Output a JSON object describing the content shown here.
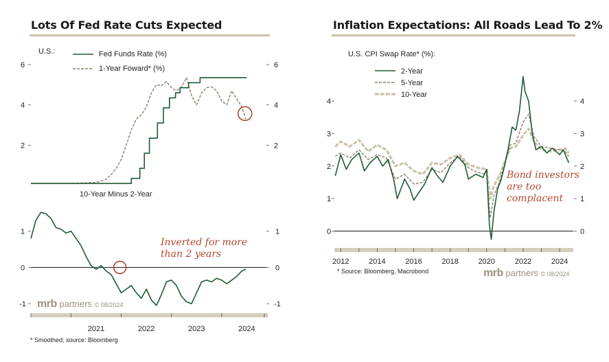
{
  "colors": {
    "green": "#1f5a34",
    "tan": "#8c7f6c",
    "light_tan": "#cbc3ad",
    "annotation": "#b0492f",
    "axis_band": "#d3cfbd",
    "title_rule": "#c9c3ad"
  },
  "left_panel": {
    "title": "Lots Of Fed Rate Cuts Expected",
    "footnote": "* Smoothed; source: Bloomberg",
    "brand": {
      "logo": "mrb",
      "name": "partners",
      "copyright": "© 08/2024"
    }
  },
  "right_panel": {
    "title": "Inflation Expectations: All Roads Lead To 2%",
    "footnote": "* Source: Bloomberg, Macrobond",
    "brand": {
      "logo": "mrb",
      "name": "partners",
      "copyright": "© 08/2024"
    }
  },
  "chart_data": [
    {
      "id": "fed-funds",
      "type": "line",
      "unit_label": "U.S.:",
      "ylim": [
        0,
        6
      ],
      "yticks": [
        "6",
        "4",
        "2"
      ],
      "xlim": [
        2020.2,
        2024.85
      ],
      "series": [
        {
          "name": "Fed Funds Rate (%)",
          "style": "solid",
          "color": "#1f5a34",
          "x": [
            2020.2,
            2022.2,
            2022.2,
            2022.37,
            2022.37,
            2022.46,
            2022.46,
            2022.56,
            2022.56,
            2022.72,
            2022.72,
            2022.84,
            2022.84,
            2022.96,
            2022.96,
            2023.08,
            2023.08,
            2023.17,
            2023.17,
            2023.34,
            2023.34,
            2023.57,
            2023.57,
            2024.5
          ],
          "y": [
            0.1,
            0.1,
            0.35,
            0.35,
            0.85,
            0.85,
            1.6,
            1.6,
            2.35,
            2.35,
            3.1,
            3.1,
            3.85,
            3.85,
            4.35,
            4.35,
            4.6,
            4.6,
            4.85,
            4.85,
            5.1,
            5.1,
            5.35,
            5.35
          ]
        },
        {
          "name": "1-Year Foward* (%)",
          "style": "dashed",
          "color": "#8c7f6c",
          "x": [
            2020.2,
            2021.0,
            2021.5,
            2021.7,
            2021.8,
            2021.9,
            2022.0,
            2022.1,
            2022.2,
            2022.3,
            2022.4,
            2022.5,
            2022.6,
            2022.7,
            2022.8,
            2022.9,
            2023.0,
            2023.1,
            2023.2,
            2023.3,
            2023.4,
            2023.5,
            2023.6,
            2023.7,
            2023.8,
            2023.9,
            2024.0,
            2024.1,
            2024.2,
            2024.3,
            2024.4,
            2024.48
          ],
          "y": [
            0.1,
            0.1,
            0.15,
            0.3,
            0.55,
            0.85,
            1.3,
            2.0,
            2.75,
            3.3,
            3.5,
            3.9,
            4.6,
            5.0,
            4.95,
            5.15,
            4.85,
            4.7,
            4.9,
            5.35,
            4.45,
            4.0,
            4.6,
            4.85,
            4.9,
            4.7,
            4.2,
            4.0,
            4.7,
            4.3,
            3.9,
            3.3
          ]
        }
      ]
    },
    {
      "id": "curve",
      "type": "line",
      "subtitle": "10-Year Minus 2-Year",
      "ylim": [
        -1.15,
        1.75
      ],
      "yticks": [
        "1",
        "0",
        "-1"
      ],
      "xlim": [
        2020.2,
        2024.85
      ],
      "xticks": [
        "2021",
        "2022",
        "2023",
        "2024"
      ],
      "annotation": "Inverted for more than 2 years",
      "series": [
        {
          "name": "10-Year Minus 2-Year",
          "style": "solid",
          "color": "#1f5a34",
          "x": [
            2020.2,
            2020.3,
            2020.4,
            2020.5,
            2020.6,
            2020.7,
            2020.8,
            2020.9,
            2021.0,
            2021.1,
            2021.2,
            2021.3,
            2021.4,
            2021.5,
            2021.6,
            2021.7,
            2021.8,
            2021.9,
            2022.0,
            2022.1,
            2022.2,
            2022.3,
            2022.4,
            2022.5,
            2022.6,
            2022.7,
            2022.8,
            2022.9,
            2023.0,
            2023.1,
            2023.2,
            2023.3,
            2023.4,
            2023.5,
            2023.6,
            2023.7,
            2023.8,
            2023.9,
            2024.0,
            2024.1,
            2024.2,
            2024.3,
            2024.4,
            2024.48
          ],
          "y": [
            0.8,
            1.3,
            1.52,
            1.48,
            1.35,
            1.1,
            1.05,
            0.95,
            1.0,
            0.8,
            0.6,
            0.3,
            0.05,
            -0.05,
            0.05,
            -0.1,
            -0.2,
            -0.45,
            -0.7,
            -0.6,
            -0.5,
            -0.7,
            -0.85,
            -0.6,
            -0.9,
            -1.05,
            -0.75,
            -0.4,
            -0.35,
            -0.5,
            -0.8,
            -0.95,
            -1.0,
            -0.7,
            -0.4,
            -0.35,
            -0.4,
            -0.3,
            -0.35,
            -0.45,
            -0.35,
            -0.25,
            -0.1,
            -0.05
          ]
        }
      ]
    },
    {
      "id": "cpi-swap",
      "type": "line",
      "unit_label": "U.S. CPI Swap Rate* (%):",
      "ylim": [
        -0.35,
        5.1
      ],
      "yticks": [
        "4",
        "3",
        "2",
        "1",
        "0"
      ],
      "xlim": [
        2011.65,
        2024.75
      ],
      "xticks": [
        "2012",
        "2014",
        "2016",
        "2018",
        "2020",
        "2022",
        "2024"
      ],
      "annotation": "Bond investors are too complacent",
      "series": [
        {
          "name": "10-Year",
          "style": "dashed-thick",
          "color": "#cbc3ad",
          "x": [
            2011.7,
            2012.0,
            2012.5,
            2013.0,
            2013.5,
            2014.0,
            2014.5,
            2015.0,
            2015.5,
            2016.0,
            2016.5,
            2017.0,
            2017.5,
            2018.0,
            2018.5,
            2019.0,
            2019.5,
            2020.0,
            2020.2,
            2020.4,
            2020.7,
            2021.0,
            2021.3,
            2021.6,
            2022.0,
            2022.3,
            2022.6,
            2023.0,
            2023.5,
            2024.0,
            2024.3,
            2024.5
          ],
          "y": [
            2.6,
            2.75,
            2.6,
            2.8,
            2.45,
            2.65,
            2.5,
            2.0,
            2.1,
            1.85,
            1.75,
            2.1,
            2.05,
            2.25,
            2.35,
            2.05,
            1.95,
            1.9,
            1.0,
            1.4,
            1.7,
            2.15,
            2.55,
            2.6,
            2.95,
            3.15,
            2.75,
            2.5,
            2.45,
            2.5,
            2.55,
            2.4
          ]
        },
        {
          "name": "5-Year",
          "style": "dashed",
          "color": "#8c7f6c",
          "x": [
            2011.7,
            2012.0,
            2012.5,
            2013.0,
            2013.5,
            2014.0,
            2014.5,
            2015.0,
            2015.5,
            2016.0,
            2016.5,
            2017.0,
            2017.5,
            2018.0,
            2018.5,
            2019.0,
            2019.5,
            2020.0,
            2020.2,
            2020.4,
            2020.7,
            2021.0,
            2021.3,
            2021.6,
            2022.0,
            2022.3,
            2022.6,
            2023.0,
            2023.5,
            2024.0,
            2024.3,
            2024.5
          ],
          "y": [
            2.3,
            2.4,
            2.25,
            2.5,
            2.2,
            2.35,
            2.25,
            1.6,
            1.75,
            1.45,
            1.5,
            1.9,
            1.8,
            2.1,
            2.3,
            1.95,
            1.8,
            1.75,
            0.4,
            1.1,
            1.5,
            2.1,
            2.65,
            2.7,
            3.35,
            3.6,
            2.9,
            2.6,
            2.55,
            2.5,
            2.45,
            2.3
          ]
        },
        {
          "name": "2-Year",
          "style": "solid",
          "color": "#1f5a34",
          "x": [
            2011.7,
            2012.0,
            2012.3,
            2012.6,
            2013.0,
            2013.3,
            2013.6,
            2014.0,
            2014.3,
            2014.6,
            2014.9,
            2015.1,
            2015.5,
            2015.8,
            2016.0,
            2016.3,
            2016.6,
            2017.0,
            2017.3,
            2017.6,
            2018.0,
            2018.4,
            2018.8,
            2019.0,
            2019.4,
            2019.8,
            2020.0,
            2020.15,
            2020.25,
            2020.4,
            2020.6,
            2020.8,
            2021.0,
            2021.2,
            2021.4,
            2021.6,
            2021.8,
            2022.0,
            2022.1,
            2022.3,
            2022.5,
            2022.7,
            2023.0,
            2023.3,
            2023.6,
            2024.0,
            2024.2,
            2024.5
          ],
          "y": [
            1.7,
            2.35,
            1.9,
            2.2,
            2.4,
            1.85,
            2.1,
            2.3,
            2.0,
            2.2,
            1.6,
            1.0,
            1.6,
            1.3,
            0.95,
            1.2,
            1.45,
            1.95,
            1.7,
            1.5,
            2.0,
            2.3,
            2.05,
            1.6,
            1.75,
            1.65,
            1.9,
            0.2,
            -0.25,
            0.6,
            1.3,
            1.6,
            2.05,
            2.6,
            3.2,
            3.1,
            3.7,
            4.75,
            4.3,
            4.0,
            3.0,
            2.5,
            2.6,
            2.4,
            2.55,
            2.35,
            2.5,
            2.1
          ]
        }
      ]
    }
  ]
}
